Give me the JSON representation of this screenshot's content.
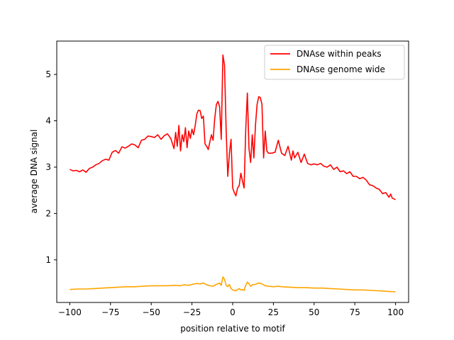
{
  "chart_data": {
    "type": "line",
    "xlabel": "position relative to motif",
    "ylabel": "average DNA signal",
    "xlim": [
      -108,
      108
    ],
    "ylim": [
      0.08,
      5.72
    ],
    "x_ticks": [
      -100,
      -75,
      -50,
      -25,
      0,
      25,
      50,
      75,
      100
    ],
    "y_ticks": [
      1,
      2,
      3,
      4,
      5
    ],
    "grid": false,
    "legend_position": "top-right",
    "series": [
      {
        "name": "DNAse within peaks",
        "color": "#ff0000",
        "points": [
          [
            -100,
            2.95
          ],
          [
            -98,
            2.92
          ],
          [
            -96,
            2.93
          ],
          [
            -94,
            2.9
          ],
          [
            -92,
            2.94
          ],
          [
            -90,
            2.89
          ],
          [
            -88,
            2.97
          ],
          [
            -86,
            3.0
          ],
          [
            -84,
            3.05
          ],
          [
            -82,
            3.08
          ],
          [
            -80,
            3.14
          ],
          [
            -78,
            3.17
          ],
          [
            -76,
            3.15
          ],
          [
            -74,
            3.32
          ],
          [
            -72,
            3.36
          ],
          [
            -70,
            3.3
          ],
          [
            -68,
            3.44
          ],
          [
            -66,
            3.41
          ],
          [
            -64,
            3.45
          ],
          [
            -62,
            3.5
          ],
          [
            -60,
            3.48
          ],
          [
            -58,
            3.42
          ],
          [
            -56,
            3.58
          ],
          [
            -54,
            3.6
          ],
          [
            -52,
            3.67
          ],
          [
            -50,
            3.66
          ],
          [
            -48,
            3.64
          ],
          [
            -46,
            3.7
          ],
          [
            -44,
            3.6
          ],
          [
            -42,
            3.68
          ],
          [
            -40,
            3.72
          ],
          [
            -38,
            3.62
          ],
          [
            -36,
            3.4
          ],
          [
            -35,
            3.75
          ],
          [
            -34,
            3.45
          ],
          [
            -33,
            3.9
          ],
          [
            -32,
            3.35
          ],
          [
            -31,
            3.7
          ],
          [
            -30,
            3.55
          ],
          [
            -29,
            3.85
          ],
          [
            -28,
            3.42
          ],
          [
            -27,
            3.78
          ],
          [
            -26,
            3.62
          ],
          [
            -25,
            3.82
          ],
          [
            -24,
            3.7
          ],
          [
            -23,
            3.9
          ],
          [
            -22,
            4.15
          ],
          [
            -21,
            4.23
          ],
          [
            -20,
            4.22
          ],
          [
            -19,
            4.05
          ],
          [
            -18,
            4.1
          ],
          [
            -17,
            3.5
          ],
          [
            -16,
            3.45
          ],
          [
            -15,
            3.38
          ],
          [
            -14,
            3.55
          ],
          [
            -13,
            3.7
          ],
          [
            -12,
            3.58
          ],
          [
            -11,
            4.05
          ],
          [
            -10,
            4.35
          ],
          [
            -9,
            4.42
          ],
          [
            -8,
            4.3
          ],
          [
            -7,
            3.6
          ],
          [
            -6,
            5.42
          ],
          [
            -5,
            5.2
          ],
          [
            -4,
            3.8
          ],
          [
            -3,
            2.8
          ],
          [
            -2,
            3.3
          ],
          [
            -1,
            3.6
          ],
          [
            0,
            2.55
          ],
          [
            1,
            2.45
          ],
          [
            2,
            2.38
          ],
          [
            3,
            2.55
          ],
          [
            4,
            2.6
          ],
          [
            5,
            2.87
          ],
          [
            6,
            2.7
          ],
          [
            7,
            2.55
          ],
          [
            8,
            3.8
          ],
          [
            9,
            4.6
          ],
          [
            10,
            3.4
          ],
          [
            11,
            3.1
          ],
          [
            12,
            3.7
          ],
          [
            13,
            3.2
          ],
          [
            14,
            3.9
          ],
          [
            15,
            4.35
          ],
          [
            16,
            4.52
          ],
          [
            17,
            4.5
          ],
          [
            18,
            4.35
          ],
          [
            19,
            3.2
          ],
          [
            20,
            3.78
          ],
          [
            21,
            3.35
          ],
          [
            22,
            3.3
          ],
          [
            24,
            3.3
          ],
          [
            26,
            3.32
          ],
          [
            28,
            3.58
          ],
          [
            30,
            3.3
          ],
          [
            32,
            3.25
          ],
          [
            34,
            3.45
          ],
          [
            36,
            3.15
          ],
          [
            37,
            3.35
          ],
          [
            38,
            3.2
          ],
          [
            40,
            3.32
          ],
          [
            42,
            3.1
          ],
          [
            44,
            3.28
          ],
          [
            46,
            3.08
          ],
          [
            48,
            3.05
          ],
          [
            50,
            3.07
          ],
          [
            52,
            3.05
          ],
          [
            54,
            3.08
          ],
          [
            56,
            3.02
          ],
          [
            58,
            3.0
          ],
          [
            60,
            3.05
          ],
          [
            62,
            2.95
          ],
          [
            64,
            3.0
          ],
          [
            66,
            2.9
          ],
          [
            68,
            2.92
          ],
          [
            70,
            2.86
          ],
          [
            72,
            2.9
          ],
          [
            74,
            2.8
          ],
          [
            76,
            2.8
          ],
          [
            78,
            2.75
          ],
          [
            80,
            2.78
          ],
          [
            82,
            2.72
          ],
          [
            84,
            2.62
          ],
          [
            86,
            2.6
          ],
          [
            88,
            2.55
          ],
          [
            90,
            2.52
          ],
          [
            92,
            2.43
          ],
          [
            94,
            2.45
          ],
          [
            96,
            2.35
          ],
          [
            97,
            2.42
          ],
          [
            98,
            2.33
          ],
          [
            100,
            2.3
          ]
        ]
      },
      {
        "name": "DNAse genome wide",
        "color": "#ffa500",
        "points": [
          [
            -100,
            0.36
          ],
          [
            -95,
            0.37
          ],
          [
            -90,
            0.37
          ],
          [
            -85,
            0.38
          ],
          [
            -80,
            0.39
          ],
          [
            -75,
            0.4
          ],
          [
            -70,
            0.41
          ],
          [
            -65,
            0.42
          ],
          [
            -60,
            0.42
          ],
          [
            -55,
            0.43
          ],
          [
            -50,
            0.44
          ],
          [
            -45,
            0.44
          ],
          [
            -40,
            0.44
          ],
          [
            -35,
            0.45
          ],
          [
            -32,
            0.44
          ],
          [
            -30,
            0.46
          ],
          [
            -27,
            0.45
          ],
          [
            -25,
            0.47
          ],
          [
            -22,
            0.49
          ],
          [
            -20,
            0.48
          ],
          [
            -18,
            0.5
          ],
          [
            -16,
            0.46
          ],
          [
            -14,
            0.44
          ],
          [
            -12,
            0.43
          ],
          [
            -10,
            0.47
          ],
          [
            -8,
            0.5
          ],
          [
            -7,
            0.45
          ],
          [
            -6,
            0.63
          ],
          [
            -5,
            0.58
          ],
          [
            -4,
            0.45
          ],
          [
            -3,
            0.42
          ],
          [
            -2,
            0.47
          ],
          [
            -1,
            0.38
          ],
          [
            0,
            0.35
          ],
          [
            1,
            0.34
          ],
          [
            2,
            0.33
          ],
          [
            3,
            0.36
          ],
          [
            4,
            0.38
          ],
          [
            5,
            0.35
          ],
          [
            6,
            0.36
          ],
          [
            7,
            0.34
          ],
          [
            8,
            0.45
          ],
          [
            9,
            0.52
          ],
          [
            10,
            0.48
          ],
          [
            11,
            0.43
          ],
          [
            12,
            0.46
          ],
          [
            14,
            0.47
          ],
          [
            16,
            0.5
          ],
          [
            18,
            0.48
          ],
          [
            20,
            0.44
          ],
          [
            22,
            0.43
          ],
          [
            25,
            0.42
          ],
          [
            28,
            0.43
          ],
          [
            30,
            0.42
          ],
          [
            35,
            0.41
          ],
          [
            40,
            0.4
          ],
          [
            45,
            0.4
          ],
          [
            50,
            0.39
          ],
          [
            55,
            0.39
          ],
          [
            60,
            0.38
          ],
          [
            65,
            0.37
          ],
          [
            70,
            0.36
          ],
          [
            75,
            0.35
          ],
          [
            80,
            0.35
          ],
          [
            85,
            0.34
          ],
          [
            90,
            0.33
          ],
          [
            95,
            0.32
          ],
          [
            100,
            0.31
          ]
        ]
      }
    ]
  }
}
